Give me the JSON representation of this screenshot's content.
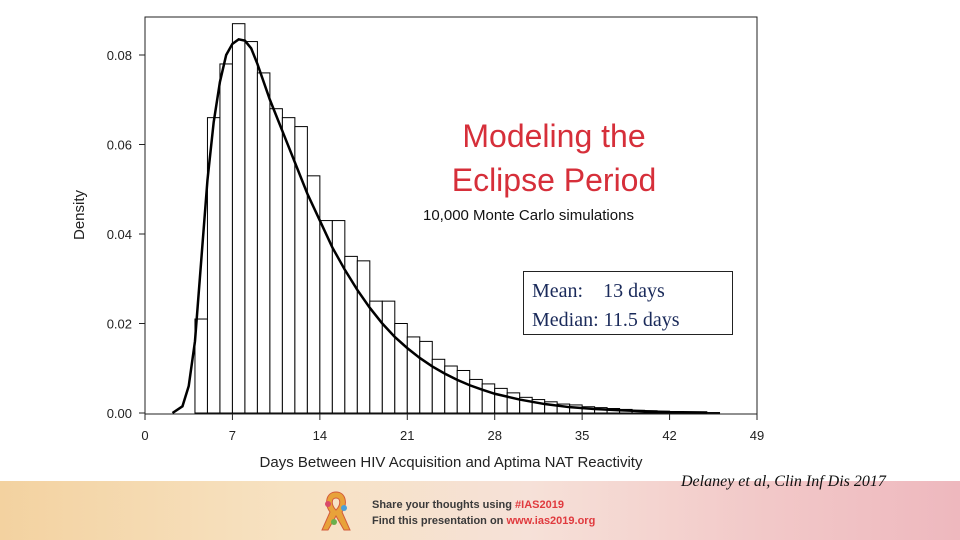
{
  "chart_data": {
    "type": "histogram",
    "xlabel": "Days Between HIV Acquisition and Aptima NAT Reactivity",
    "ylabel": "Density",
    "xlim": [
      0,
      49
    ],
    "ylim": [
      0,
      0.088
    ],
    "x_ticks": [
      0,
      7,
      14,
      21,
      28,
      35,
      42,
      49
    ],
    "y_ticks": [
      0.0,
      0.02,
      0.04,
      0.06,
      0.08
    ],
    "y_tick_labels": [
      "0.00",
      "0.02",
      "0.04",
      "0.06",
      "0.08"
    ],
    "bin_width": 1,
    "bins": [
      {
        "x0": 4,
        "density": 0.021
      },
      {
        "x0": 5,
        "density": 0.066
      },
      {
        "x0": 6,
        "density": 0.078
      },
      {
        "x0": 7,
        "density": 0.087
      },
      {
        "x0": 8,
        "density": 0.083
      },
      {
        "x0": 9,
        "density": 0.076
      },
      {
        "x0": 10,
        "density": 0.068
      },
      {
        "x0": 11,
        "density": 0.066
      },
      {
        "x0": 12,
        "density": 0.064
      },
      {
        "x0": 13,
        "density": 0.053
      },
      {
        "x0": 14,
        "density": 0.043
      },
      {
        "x0": 15,
        "density": 0.043
      },
      {
        "x0": 16,
        "density": 0.035
      },
      {
        "x0": 17,
        "density": 0.034
      },
      {
        "x0": 18,
        "density": 0.025
      },
      {
        "x0": 19,
        "density": 0.025
      },
      {
        "x0": 20,
        "density": 0.02
      },
      {
        "x0": 21,
        "density": 0.017
      },
      {
        "x0": 22,
        "density": 0.016
      },
      {
        "x0": 23,
        "density": 0.012
      },
      {
        "x0": 24,
        "density": 0.0105
      },
      {
        "x0": 25,
        "density": 0.0095
      },
      {
        "x0": 26,
        "density": 0.0075
      },
      {
        "x0": 27,
        "density": 0.0065
      },
      {
        "x0": 28,
        "density": 0.0055
      },
      {
        "x0": 29,
        "density": 0.0045
      },
      {
        "x0": 30,
        "density": 0.0035
      },
      {
        "x0": 31,
        "density": 0.003
      },
      {
        "x0": 32,
        "density": 0.0025
      },
      {
        "x0": 33,
        "density": 0.002
      },
      {
        "x0": 34,
        "density": 0.0018
      },
      {
        "x0": 35,
        "density": 0.0014
      },
      {
        "x0": 36,
        "density": 0.0012
      },
      {
        "x0": 37,
        "density": 0.001
      },
      {
        "x0": 38,
        "density": 0.0008
      },
      {
        "x0": 39,
        "density": 0.0006
      },
      {
        "x0": 40,
        "density": 0.0005
      },
      {
        "x0": 41,
        "density": 0.0004
      },
      {
        "x0": 42,
        "density": 0.0003
      },
      {
        "x0": 43,
        "density": 0.0002
      },
      {
        "x0": 44,
        "density": 0.0002
      },
      {
        "x0": 45,
        "density": 0.0001
      }
    ],
    "density_curve": {
      "x": [
        2.2,
        3,
        3.5,
        4,
        4.5,
        5,
        5.5,
        6,
        6.5,
        7,
        7.5,
        8,
        8.5,
        9,
        10,
        11,
        12,
        13,
        14,
        15,
        16,
        17,
        18,
        19,
        20,
        21,
        22,
        23,
        24,
        25,
        26,
        27,
        28,
        30,
        32,
        34,
        36,
        38,
        40,
        42,
        45
      ],
      "y": [
        0.0,
        0.0015,
        0.006,
        0.016,
        0.034,
        0.052,
        0.065,
        0.074,
        0.08,
        0.0825,
        0.0835,
        0.0832,
        0.0815,
        0.078,
        0.07,
        0.063,
        0.056,
        0.049,
        0.043,
        0.037,
        0.032,
        0.0275,
        0.0235,
        0.02,
        0.017,
        0.0145,
        0.0123,
        0.0104,
        0.0088,
        0.0074,
        0.0062,
        0.0052,
        0.0043,
        0.003,
        0.002,
        0.0013,
        0.0009,
        0.0006,
        0.0004,
        0.0002,
        0.0001
      ]
    }
  },
  "title_lines": [
    "Modeling the",
    "Eclipse Period"
  ],
  "subtitle": "10,000 Monte Carlo simulations",
  "stats": {
    "mean_line": "Mean:    13 days",
    "median_line": "Median: 11.5 days"
  },
  "citation": "Delaney et al, Clin Inf Dis 2017",
  "footer": {
    "line1_prefix": "Share your thoughts using ",
    "line1_highlight": "#IAS2019",
    "line2_prefix": "Find this presentation on ",
    "line2_highlight": "www.ias2019.org"
  },
  "colors": {
    "title": "#d62f3a",
    "stats_text": "#1a2a5a",
    "footer_accent": "#e03a3e",
    "bar_stroke": "#000000",
    "bar_fill": "#ffffff"
  }
}
